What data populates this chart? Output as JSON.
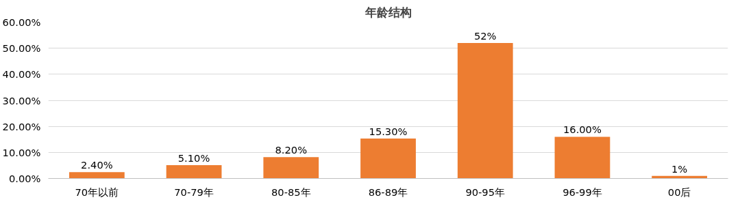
{
  "chart_data": {
    "type": "bar",
    "title": "年龄结构",
    "categories": [
      "70年以前",
      "70-79年",
      "80-85年",
      "86-89年",
      "90-95年",
      "96-99年",
      "00后"
    ],
    "values": [
      2.4,
      5.1,
      8.2,
      15.3,
      52,
      16,
      1
    ],
    "value_labels": [
      "2.40%",
      "5.10%",
      "8.20%",
      "15.30%",
      "52%",
      "16.00%",
      "1%"
    ],
    "color": "#ed7d31",
    "ylim": [
      0,
      60
    ],
    "yticks": [
      {
        "value": 0,
        "label": "0.00%"
      },
      {
        "value": 10,
        "label": "10.00%"
      },
      {
        "value": 20,
        "label": "20.00%"
      },
      {
        "value": 30,
        "label": "30.00%"
      },
      {
        "value": 40,
        "label": "40.00%"
      },
      {
        "value": 50,
        "label": "50.00%"
      },
      {
        "value": 60,
        "label": "60.00%"
      }
    ],
    "grid": "y"
  }
}
